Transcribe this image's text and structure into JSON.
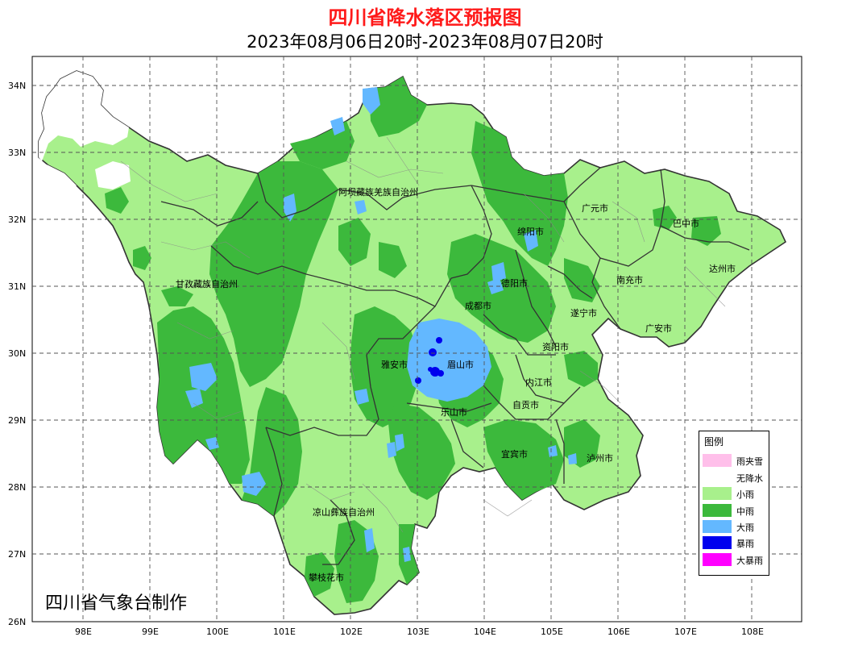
{
  "header": {
    "title": "四川省降水落区预报图",
    "subtitle": "2023年08月06日20时-2023年08月07日20时"
  },
  "map": {
    "lat_ticks": [
      "34N",
      "33N",
      "32N",
      "31N",
      "30N",
      "29N",
      "28N",
      "27N",
      "26N"
    ],
    "lon_ticks": [
      "98E",
      "99E",
      "100E",
      "101E",
      "102E",
      "103E",
      "104E",
      "105E",
      "106E",
      "107E",
      "108E"
    ],
    "regions": [
      "阿坝藏族羌族自治州",
      "甘孜藏族自治州",
      "广元市",
      "巴中市",
      "绵阳市",
      "达州市",
      "德阳市",
      "南充市",
      "成都市",
      "遂宁市",
      "广安市",
      "资阳市",
      "雅安市",
      "眉山市",
      "内江市",
      "自贡市",
      "乐山市",
      "宜宾市",
      "泸州市",
      "凉山彝族自治州",
      "攀枝花市"
    ],
    "colors": {
      "rain_snow": "#ffbfea",
      "none": "#ffffff",
      "light": "#a8f08c",
      "moderate": "#3cb93c",
      "heavy": "#63b8ff",
      "storm": "#0000ee",
      "extreme": "#ff00ff"
    }
  },
  "legend": {
    "title": "图例",
    "items": [
      {
        "label": "雨夹雪",
        "color": "#ffbfea"
      },
      {
        "label": "无降水",
        "color": "#ffffff"
      },
      {
        "label": "小雨",
        "color": "#a8f08c"
      },
      {
        "label": "中雨",
        "color": "#3cb93c"
      },
      {
        "label": "大雨",
        "color": "#63b8ff"
      },
      {
        "label": "暴雨",
        "color": "#0000ee"
      },
      {
        "label": "大暴雨",
        "color": "#ff00ff"
      }
    ]
  },
  "footer": {
    "credit": "四川省气象台制作"
  }
}
